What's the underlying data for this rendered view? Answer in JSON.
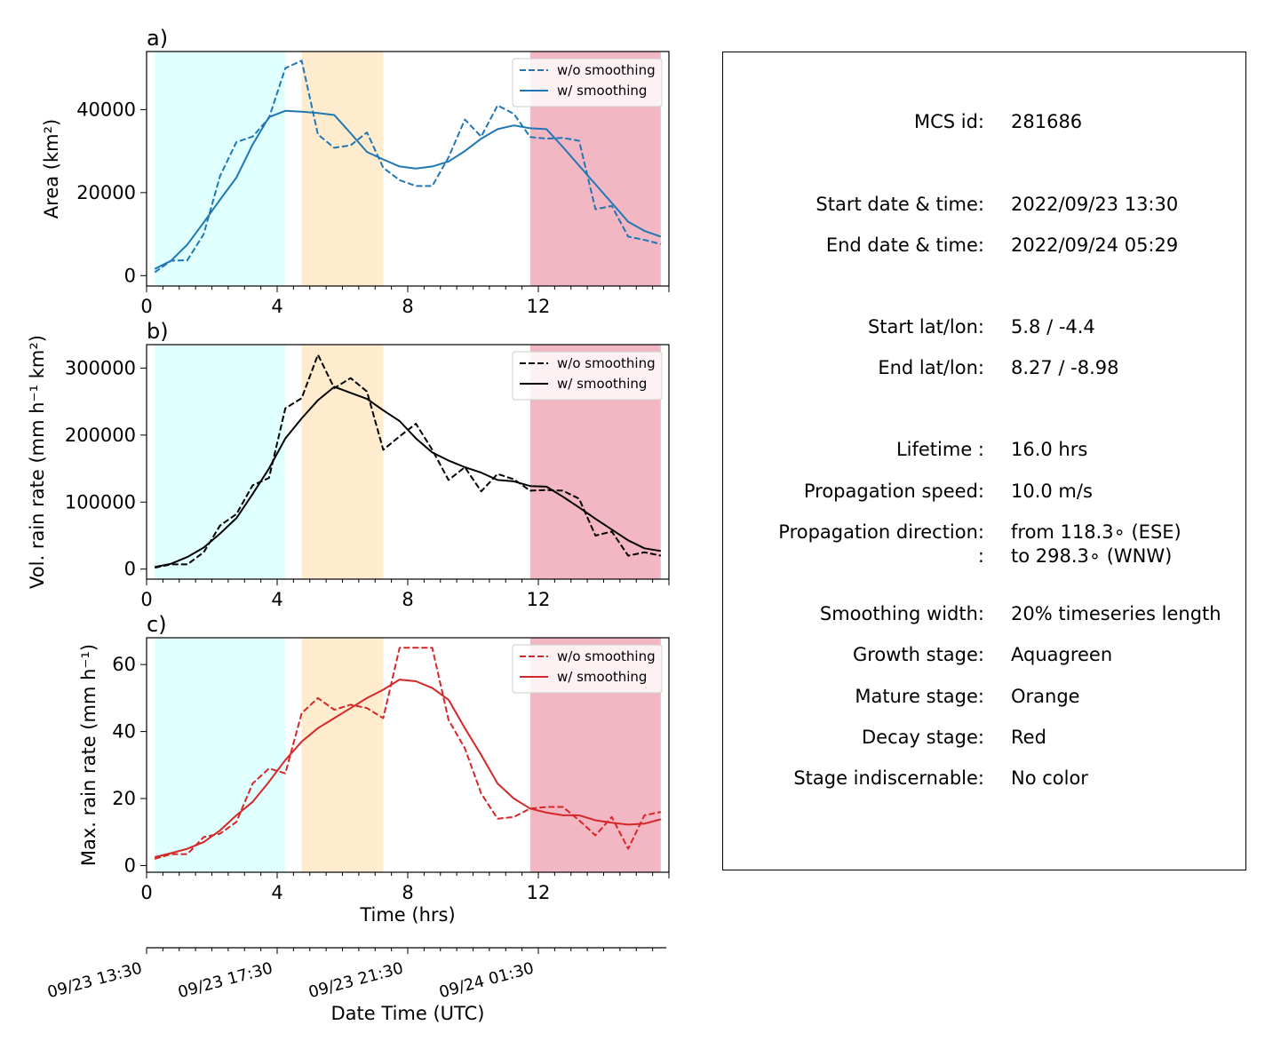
{
  "colors": {
    "growth": "#e0ffff",
    "mature": "#ffebcd",
    "decay": "#f3b7c4",
    "area_line": "#1f77b4",
    "vol_line": "#000000",
    "max_line": "#d62728"
  },
  "x_ticks": [
    "0",
    "4",
    "8",
    "12"
  ],
  "stages": {
    "growth": [
      0.25,
      4.25
    ],
    "mature": [
      4.75,
      7.25
    ],
    "decay": [
      11.75,
      15.75
    ]
  },
  "chart_data": [
    {
      "type": "line",
      "panel": "a)",
      "xlabel": "",
      "ylabel": "Area  (km²)",
      "xlim": [
        0,
        16
      ],
      "ylim": [
        -2500,
        54000
      ],
      "yticks": [
        0,
        20000,
        40000
      ],
      "ytick_labels": [
        "0",
        "20000",
        "40000"
      ],
      "legend": "top-right",
      "series": [
        {
          "name": "w/o smoothing",
          "style": "dashed",
          "x": [
            0.25,
            0.75,
            1.25,
            1.75,
            2.25,
            2.75,
            3.25,
            3.75,
            4.25,
            4.75,
            5.25,
            5.75,
            6.25,
            6.75,
            7.25,
            7.75,
            8.25,
            8.75,
            9.25,
            9.75,
            10.25,
            10.75,
            11.25,
            11.75,
            12.25,
            12.75,
            13.25,
            13.75,
            14.25,
            14.75,
            15.25,
            15.75
          ],
          "y": [
            800,
            3600,
            3700,
            10000,
            24000,
            32200,
            33500,
            38000,
            50000,
            51800,
            34000,
            30800,
            31400,
            34500,
            26000,
            23000,
            21600,
            21600,
            28500,
            37600,
            33500,
            41000,
            39000,
            33400,
            33000,
            33200,
            32500,
            16000,
            16800,
            9400,
            8600,
            7600
          ]
        },
        {
          "name": "w/ smoothing",
          "style": "solid",
          "x": [
            0.25,
            0.75,
            1.25,
            1.75,
            2.25,
            2.75,
            3.25,
            3.75,
            4.25,
            4.75,
            5.25,
            5.75,
            6.25,
            6.75,
            7.25,
            7.75,
            8.25,
            8.75,
            9.25,
            9.75,
            10.25,
            10.75,
            11.25,
            11.75,
            12.25,
            12.75,
            13.25,
            13.75,
            14.25,
            14.75,
            15.25,
            15.75
          ],
          "y": [
            1600,
            3600,
            7500,
            12800,
            18300,
            23600,
            31600,
            38200,
            39700,
            39500,
            39200,
            38700,
            34300,
            29800,
            28000,
            26300,
            25800,
            26300,
            27500,
            30000,
            33000,
            35300,
            36200,
            35500,
            35300,
            31000,
            26500,
            22000,
            17500,
            13000,
            10800,
            9400
          ]
        }
      ]
    },
    {
      "type": "line",
      "panel": "b)",
      "xlabel": "",
      "ylabel": "Vol. rain rate (mm h⁻¹ km²)",
      "xlim": [
        0,
        16
      ],
      "ylim": [
        -15000,
        335000
      ],
      "yticks": [
        0,
        100000,
        200000,
        300000
      ],
      "ytick_labels": [
        "0",
        "100000",
        "200000",
        "300000"
      ],
      "legend": "top-right",
      "series": [
        {
          "name": "w/o smoothing",
          "style": "dashed",
          "x": [
            0.25,
            0.75,
            1.25,
            1.75,
            2.25,
            2.75,
            3.25,
            3.75,
            4.25,
            4.75,
            5.25,
            5.75,
            6.25,
            6.75,
            7.25,
            7.75,
            8.25,
            8.75,
            9.25,
            9.75,
            10.25,
            10.75,
            11.25,
            11.75,
            12.25,
            12.75,
            13.25,
            13.75,
            14.25,
            14.75,
            15.25,
            15.75
          ],
          "y": [
            2000,
            7000,
            7000,
            25000,
            65000,
            82000,
            125000,
            136000,
            240000,
            255000,
            320000,
            270000,
            285000,
            265000,
            178000,
            198000,
            217000,
            178000,
            133000,
            152000,
            116000,
            142000,
            134000,
            117000,
            118000,
            117000,
            105000,
            50000,
            56000,
            20000,
            25000,
            20000
          ]
        },
        {
          "name": "w/ smoothing",
          "style": "solid",
          "x": [
            0.25,
            0.75,
            1.25,
            1.75,
            2.25,
            2.75,
            3.25,
            3.75,
            4.25,
            4.75,
            5.25,
            5.75,
            6.25,
            6.75,
            7.25,
            7.75,
            8.25,
            8.75,
            9.25,
            9.75,
            10.25,
            10.75,
            11.25,
            11.75,
            12.25,
            12.75,
            13.25,
            13.75,
            14.25,
            14.75,
            15.25,
            15.75
          ],
          "y": [
            3000,
            8000,
            18000,
            32000,
            53000,
            76000,
            112000,
            150000,
            195000,
            225000,
            252000,
            272000,
            263000,
            254000,
            237000,
            221000,
            195000,
            174000,
            162000,
            152000,
            144000,
            133000,
            131000,
            124000,
            123000,
            108000,
            92000,
            75000,
            59000,
            43000,
            31000,
            27000
          ]
        }
      ]
    },
    {
      "type": "line",
      "panel": "c)",
      "xlabel": "Time (hrs)",
      "ylabel": "Max. rain rate  (mm h⁻¹)",
      "xlim": [
        0,
        16
      ],
      "ylim": [
        -2,
        68
      ],
      "yticks": [
        0,
        20,
        40,
        60
      ],
      "ytick_labels": [
        "0",
        "20",
        "40",
        "60"
      ],
      "legend": "top-right",
      "series": [
        {
          "name": "w/o smoothing",
          "style": "dashed",
          "x": [
            0.25,
            0.75,
            1.25,
            1.75,
            2.25,
            2.75,
            3.25,
            3.75,
            4.25,
            4.75,
            5.25,
            5.75,
            6.25,
            6.75,
            7.25,
            7.75,
            8.25,
            8.75,
            9.25,
            9.75,
            10.25,
            10.75,
            11.25,
            11.75,
            12.25,
            12.75,
            13.25,
            13.75,
            14.25,
            14.75,
            15.25,
            15.75
          ],
          "y": [
            2.0,
            3.4,
            3.4,
            8.5,
            9.5,
            13.0,
            24.5,
            29.0,
            27.5,
            45.5,
            50.0,
            46.5,
            48.0,
            47.0,
            44.0,
            65.0,
            65.0,
            65.0,
            43.5,
            35.0,
            21.5,
            14.0,
            14.5,
            17.0,
            17.5,
            17.5,
            13.5,
            9.0,
            14.5,
            5.0,
            15.0,
            16.0
          ]
        },
        {
          "name": "w/ smoothing",
          "style": "solid",
          "x": [
            0.25,
            0.75,
            1.25,
            1.75,
            2.25,
            2.75,
            3.25,
            3.75,
            4.25,
            4.75,
            5.25,
            5.75,
            6.25,
            6.75,
            7.25,
            7.75,
            8.25,
            8.75,
            9.25,
            9.75,
            10.25,
            10.75,
            11.25,
            11.75,
            12.25,
            12.75,
            13.25,
            13.75,
            14.25,
            14.75,
            15.25,
            15.75
          ],
          "y": [
            2.5,
            3.7,
            5.0,
            7.0,
            10.5,
            15.0,
            19.0,
            25.0,
            31.5,
            37.0,
            41.0,
            44.0,
            47.0,
            50.0,
            52.5,
            55.5,
            55.0,
            53.0,
            49.5,
            41.0,
            33.0,
            24.5,
            20.0,
            17.0,
            15.8,
            15.0,
            15.0,
            13.5,
            12.8,
            12.2,
            12.5,
            13.8
          ]
        }
      ]
    },
    {
      "type": "axis",
      "panel": "date-axis",
      "xlabel": "Date Time (UTC)",
      "tick_labels": [
        "09/23 13:30",
        "09/23 17:30",
        "09/23 21:30",
        "09/24 01:30"
      ]
    }
  ],
  "info": {
    "rows": [
      {
        "label": "MCS id:",
        "value": "281686"
      },
      {
        "label": "Start date & time:",
        "value": "2022/09/23 13:30"
      },
      {
        "label": "End date & time:",
        "value": "2022/09/24 05:29"
      },
      {
        "label": "Start lat/lon:",
        "value": "5.8 / -4.4"
      },
      {
        "label": "End lat/lon:",
        "value": "8.27 / -8.98"
      },
      {
        "label": "Lifetime :",
        "value": "16.0 hrs"
      },
      {
        "label": "Propagation speed:",
        "value": "10.0 m/s"
      },
      {
        "label": "Propagation direction:",
        "value": "from 118.3∘ (ESE)"
      },
      {
        "label": ":",
        "value": "to   298.3∘ (WNW)"
      },
      {
        "label": "Smoothing width:",
        "value": "20% timeseries length"
      },
      {
        "label": "Growth stage:",
        "value": "Aquagreen"
      },
      {
        "label": "Mature stage:",
        "value": "Orange"
      },
      {
        "label": "Decay stage:",
        "value": "Red"
      },
      {
        "label": "Stage indiscernable:",
        "value": "No color"
      }
    ]
  }
}
